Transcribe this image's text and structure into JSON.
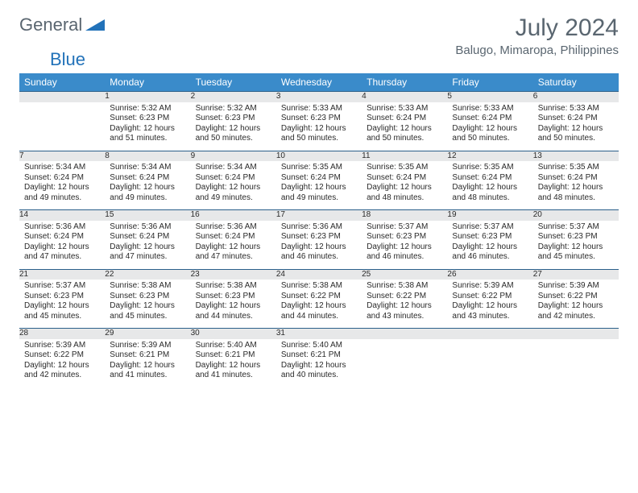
{
  "logo": {
    "text1": "General",
    "text2": "Blue"
  },
  "title": "July 2024",
  "subtitle": "Balugo, Mimaropa, Philippines",
  "colors": {
    "header_bg": "#3a8bca",
    "header_text": "#ffffff",
    "daynum_bg": "#e7e8e9",
    "border": "#2b5f8a",
    "body_text": "#2a2a2a",
    "title_text": "#5a6670",
    "logo_blue": "#2272b9"
  },
  "weekdays": [
    "Sunday",
    "Monday",
    "Tuesday",
    "Wednesday",
    "Thursday",
    "Friday",
    "Saturday"
  ],
  "weeks": [
    [
      {
        "n": "",
        "sunrise": "",
        "sunset": "",
        "daylight": ""
      },
      {
        "n": "1",
        "sunrise": "Sunrise: 5:32 AM",
        "sunset": "Sunset: 6:23 PM",
        "daylight": "Daylight: 12 hours and 51 minutes."
      },
      {
        "n": "2",
        "sunrise": "Sunrise: 5:32 AM",
        "sunset": "Sunset: 6:23 PM",
        "daylight": "Daylight: 12 hours and 50 minutes."
      },
      {
        "n": "3",
        "sunrise": "Sunrise: 5:33 AM",
        "sunset": "Sunset: 6:23 PM",
        "daylight": "Daylight: 12 hours and 50 minutes."
      },
      {
        "n": "4",
        "sunrise": "Sunrise: 5:33 AM",
        "sunset": "Sunset: 6:24 PM",
        "daylight": "Daylight: 12 hours and 50 minutes."
      },
      {
        "n": "5",
        "sunrise": "Sunrise: 5:33 AM",
        "sunset": "Sunset: 6:24 PM",
        "daylight": "Daylight: 12 hours and 50 minutes."
      },
      {
        "n": "6",
        "sunrise": "Sunrise: 5:33 AM",
        "sunset": "Sunset: 6:24 PM",
        "daylight": "Daylight: 12 hours and 50 minutes."
      }
    ],
    [
      {
        "n": "7",
        "sunrise": "Sunrise: 5:34 AM",
        "sunset": "Sunset: 6:24 PM",
        "daylight": "Daylight: 12 hours and 49 minutes."
      },
      {
        "n": "8",
        "sunrise": "Sunrise: 5:34 AM",
        "sunset": "Sunset: 6:24 PM",
        "daylight": "Daylight: 12 hours and 49 minutes."
      },
      {
        "n": "9",
        "sunrise": "Sunrise: 5:34 AM",
        "sunset": "Sunset: 6:24 PM",
        "daylight": "Daylight: 12 hours and 49 minutes."
      },
      {
        "n": "10",
        "sunrise": "Sunrise: 5:35 AM",
        "sunset": "Sunset: 6:24 PM",
        "daylight": "Daylight: 12 hours and 49 minutes."
      },
      {
        "n": "11",
        "sunrise": "Sunrise: 5:35 AM",
        "sunset": "Sunset: 6:24 PM",
        "daylight": "Daylight: 12 hours and 48 minutes."
      },
      {
        "n": "12",
        "sunrise": "Sunrise: 5:35 AM",
        "sunset": "Sunset: 6:24 PM",
        "daylight": "Daylight: 12 hours and 48 minutes."
      },
      {
        "n": "13",
        "sunrise": "Sunrise: 5:35 AM",
        "sunset": "Sunset: 6:24 PM",
        "daylight": "Daylight: 12 hours and 48 minutes."
      }
    ],
    [
      {
        "n": "14",
        "sunrise": "Sunrise: 5:36 AM",
        "sunset": "Sunset: 6:24 PM",
        "daylight": "Daylight: 12 hours and 47 minutes."
      },
      {
        "n": "15",
        "sunrise": "Sunrise: 5:36 AM",
        "sunset": "Sunset: 6:24 PM",
        "daylight": "Daylight: 12 hours and 47 minutes."
      },
      {
        "n": "16",
        "sunrise": "Sunrise: 5:36 AM",
        "sunset": "Sunset: 6:24 PM",
        "daylight": "Daylight: 12 hours and 47 minutes."
      },
      {
        "n": "17",
        "sunrise": "Sunrise: 5:36 AM",
        "sunset": "Sunset: 6:23 PM",
        "daylight": "Daylight: 12 hours and 46 minutes."
      },
      {
        "n": "18",
        "sunrise": "Sunrise: 5:37 AM",
        "sunset": "Sunset: 6:23 PM",
        "daylight": "Daylight: 12 hours and 46 minutes."
      },
      {
        "n": "19",
        "sunrise": "Sunrise: 5:37 AM",
        "sunset": "Sunset: 6:23 PM",
        "daylight": "Daylight: 12 hours and 46 minutes."
      },
      {
        "n": "20",
        "sunrise": "Sunrise: 5:37 AM",
        "sunset": "Sunset: 6:23 PM",
        "daylight": "Daylight: 12 hours and 45 minutes."
      }
    ],
    [
      {
        "n": "21",
        "sunrise": "Sunrise: 5:37 AM",
        "sunset": "Sunset: 6:23 PM",
        "daylight": "Daylight: 12 hours and 45 minutes."
      },
      {
        "n": "22",
        "sunrise": "Sunrise: 5:38 AM",
        "sunset": "Sunset: 6:23 PM",
        "daylight": "Daylight: 12 hours and 45 minutes."
      },
      {
        "n": "23",
        "sunrise": "Sunrise: 5:38 AM",
        "sunset": "Sunset: 6:23 PM",
        "daylight": "Daylight: 12 hours and 44 minutes."
      },
      {
        "n": "24",
        "sunrise": "Sunrise: 5:38 AM",
        "sunset": "Sunset: 6:22 PM",
        "daylight": "Daylight: 12 hours and 44 minutes."
      },
      {
        "n": "25",
        "sunrise": "Sunrise: 5:38 AM",
        "sunset": "Sunset: 6:22 PM",
        "daylight": "Daylight: 12 hours and 43 minutes."
      },
      {
        "n": "26",
        "sunrise": "Sunrise: 5:39 AM",
        "sunset": "Sunset: 6:22 PM",
        "daylight": "Daylight: 12 hours and 43 minutes."
      },
      {
        "n": "27",
        "sunrise": "Sunrise: 5:39 AM",
        "sunset": "Sunset: 6:22 PM",
        "daylight": "Daylight: 12 hours and 42 minutes."
      }
    ],
    [
      {
        "n": "28",
        "sunrise": "Sunrise: 5:39 AM",
        "sunset": "Sunset: 6:22 PM",
        "daylight": "Daylight: 12 hours and 42 minutes."
      },
      {
        "n": "29",
        "sunrise": "Sunrise: 5:39 AM",
        "sunset": "Sunset: 6:21 PM",
        "daylight": "Daylight: 12 hours and 41 minutes."
      },
      {
        "n": "30",
        "sunrise": "Sunrise: 5:40 AM",
        "sunset": "Sunset: 6:21 PM",
        "daylight": "Daylight: 12 hours and 41 minutes."
      },
      {
        "n": "31",
        "sunrise": "Sunrise: 5:40 AM",
        "sunset": "Sunset: 6:21 PM",
        "daylight": "Daylight: 12 hours and 40 minutes."
      },
      {
        "n": "",
        "sunrise": "",
        "sunset": "",
        "daylight": ""
      },
      {
        "n": "",
        "sunrise": "",
        "sunset": "",
        "daylight": ""
      },
      {
        "n": "",
        "sunrise": "",
        "sunset": "",
        "daylight": ""
      }
    ]
  ]
}
